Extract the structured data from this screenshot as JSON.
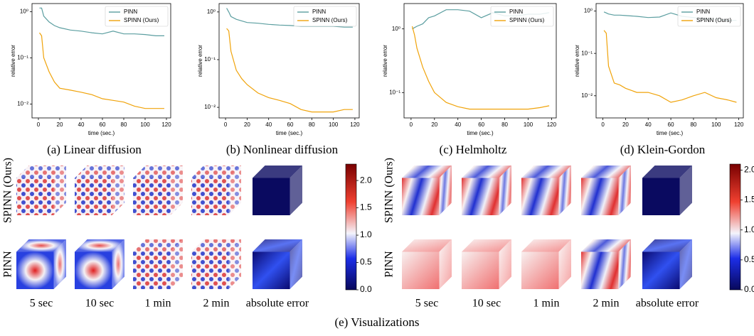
{
  "chart_data": [
    {
      "type": "line",
      "caption": "(a) Linear diffusion",
      "x_label": "time (sec.)",
      "y_label": "relative error",
      "log_y": true,
      "x": [
        1,
        3,
        5,
        10,
        15,
        20,
        30,
        40,
        50,
        60,
        70,
        80,
        90,
        100,
        110,
        118
      ],
      "series": [
        {
          "name": "PINN",
          "color": "#5b9ea0",
          "values": [
            1.2,
            1.2,
            0.8,
            0.6,
            0.5,
            0.45,
            0.4,
            0.38,
            0.35,
            0.33,
            0.38,
            0.33,
            0.33,
            0.32,
            0.3,
            0.3
          ]
        },
        {
          "name": "SPINN (Ours)",
          "color": "#f0a30a",
          "values": [
            0.35,
            0.3,
            0.1,
            0.05,
            0.03,
            0.022,
            0.02,
            0.018,
            0.016,
            0.013,
            0.012,
            0.011,
            0.009,
            0.008,
            0.008,
            0.008
          ]
        }
      ],
      "xlim": [
        -6,
        124
      ],
      "xticks": [
        0,
        20,
        40,
        60,
        80,
        100,
        120
      ],
      "ylim": [
        0.005,
        1.5
      ],
      "yticks": [
        {
          "value": 0.01,
          "label": "10⁻²"
        },
        {
          "value": 0.1,
          "label": "10⁻¹"
        },
        {
          "value": 1,
          "label": "10⁰"
        }
      ],
      "legend": "upper right"
    },
    {
      "type": "line",
      "caption": "(b) Nonlinear diffusion",
      "x_label": "time (sec.)",
      "y_label": "relative error",
      "log_y": true,
      "x": [
        1,
        3,
        5,
        10,
        15,
        20,
        30,
        40,
        50,
        60,
        70,
        80,
        90,
        100,
        110,
        118
      ],
      "series": [
        {
          "name": "PINN",
          "color": "#5b9ea0",
          "values": [
            1.2,
            1.0,
            0.8,
            0.7,
            0.65,
            0.6,
            0.58,
            0.55,
            0.53,
            0.52,
            0.5,
            0.5,
            0.5,
            0.5,
            0.48,
            0.48
          ]
        },
        {
          "name": "SPINN (Ours)",
          "color": "#f0a30a",
          "values": [
            0.45,
            0.4,
            0.15,
            0.06,
            0.04,
            0.03,
            0.02,
            0.016,
            0.014,
            0.012,
            0.009,
            0.008,
            0.008,
            0.008,
            0.009,
            0.009
          ]
        }
      ],
      "xlim": [
        -6,
        124
      ],
      "xticks": [
        0,
        20,
        40,
        60,
        80,
        100,
        120
      ],
      "ylim": [
        0.006,
        1.5
      ],
      "yticks": [
        {
          "value": 0.01,
          "label": "10⁻²"
        },
        {
          "value": 0.1,
          "label": "10⁻¹"
        },
        {
          "value": 1,
          "label": "10⁰"
        }
      ],
      "legend": "upper right"
    },
    {
      "type": "line",
      "caption": "(c) Helmholtz",
      "x_label": "time (sec.)",
      "y_label": "relative error",
      "log_y": true,
      "x": [
        1,
        3,
        5,
        10,
        15,
        20,
        30,
        40,
        50,
        60,
        70,
        80,
        90,
        100,
        110,
        118
      ],
      "series": [
        {
          "name": "PINN",
          "color": "#5b9ea0",
          "values": [
            1.0,
            1.05,
            1.1,
            1.2,
            1.5,
            1.6,
            2.0,
            2.0,
            1.9,
            1.5,
            1.8,
            1.6,
            1.6,
            1.7,
            1.7,
            1.8
          ]
        },
        {
          "name": "SPINN (Ours)",
          "color": "#f0a30a",
          "values": [
            1.1,
            0.8,
            0.5,
            0.25,
            0.15,
            0.1,
            0.07,
            0.06,
            0.055,
            0.055,
            0.055,
            0.055,
            0.055,
            0.055,
            0.058,
            0.062
          ]
        }
      ],
      "xlim": [
        -6,
        124
      ],
      "xticks": [
        0,
        20,
        40,
        60,
        80,
        100,
        120
      ],
      "ylim": [
        0.04,
        2.5
      ],
      "yticks": [
        {
          "value": 0.1,
          "label": "10⁻¹"
        },
        {
          "value": 1,
          "label": "10⁰"
        }
      ],
      "legend": "upper right"
    },
    {
      "type": "line",
      "caption": "(d) Klein-Gordon",
      "x_label": "time (sec.)",
      "y_label": "relative error",
      "log_y": true,
      "x": [
        1,
        3,
        5,
        10,
        15,
        20,
        30,
        40,
        50,
        60,
        70,
        80,
        90,
        100,
        110,
        118
      ],
      "series": [
        {
          "name": "PINN",
          "color": "#5b9ea0",
          "values": [
            0.95,
            0.9,
            0.85,
            0.8,
            0.8,
            0.78,
            0.75,
            0.7,
            0.72,
            0.9,
            0.75,
            0.7,
            0.65,
            0.65,
            0.6,
            0.6
          ]
        },
        {
          "name": "SPINN (Ours)",
          "color": "#f0a30a",
          "values": [
            0.35,
            0.3,
            0.05,
            0.02,
            0.018,
            0.015,
            0.012,
            0.012,
            0.01,
            0.007,
            0.008,
            0.01,
            0.012,
            0.009,
            0.008,
            0.007
          ]
        }
      ],
      "xlim": [
        -6,
        124
      ],
      "xticks": [
        0,
        20,
        40,
        60,
        80,
        100,
        120
      ],
      "ylim": [
        0.003,
        1.5
      ],
      "yticks": [
        {
          "value": 0.01,
          "label": "10⁻²"
        },
        {
          "value": 0.1,
          "label": "10⁻¹"
        },
        {
          "value": 1,
          "label": "10⁰"
        }
      ],
      "legend": "upper right"
    }
  ],
  "visualizations": {
    "caption": "(e) Visualizations",
    "panels": [
      {
        "rows": [
          "SPINN (Ours)",
          "PINN"
        ],
        "columns": [
          "5 sec",
          "10 sec",
          "1 min",
          "2 min",
          "absolute error"
        ],
        "colorbar": {
          "lim": [
            0,
            2.3
          ],
          "ticks": [
            {
              "value": 0,
              "label": "0.0"
            },
            0.5,
            {
              "value": 1,
              "label": "1.0"
            },
            1.5,
            {
              "value": 2,
              "label": "2.0"
            }
          ]
        }
      },
      {
        "rows": [
          "SPINN (Ours)",
          "PINN"
        ],
        "columns": [
          "5 sec",
          "10 sec",
          "1 min",
          "2 min",
          "absolute error"
        ],
        "colorbar": {
          "lim": [
            0,
            2.1
          ],
          "ticks": [
            {
              "value": 0,
              "label": "0.0"
            },
            0.5,
            {
              "value": 1,
              "label": "1.0"
            },
            1.5,
            {
              "value": 2,
              "label": "2.0"
            }
          ]
        }
      }
    ]
  }
}
